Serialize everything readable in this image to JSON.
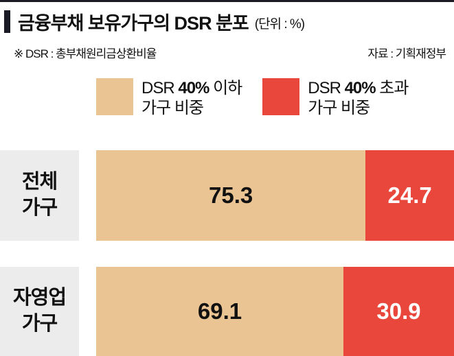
{
  "header": {
    "title": "금융부채 보유가구의 DSR 분포",
    "unit": "(단위 : %)",
    "note": "※ DSR : 총부채원리금상환비율",
    "source": "자료 : 기획재정부"
  },
  "legend": [
    {
      "prefix": "DSR",
      "bold": "40%",
      "suffix": "이하",
      "line2": "가구 비중"
    },
    {
      "prefix": "DSR",
      "bold": "40%",
      "suffix": "초과",
      "line2": "가구 비중"
    }
  ],
  "rows": [
    {
      "line1": "전체",
      "line2": "가구"
    },
    {
      "line1": "자영업",
      "line2": "가구"
    }
  ],
  "colors": {
    "under-color": "#ebc493",
    "over-color": "#e9463c",
    "label-bg": "#ececec",
    "accent-dark": "#1b1b26"
  },
  "chart_data": {
    "type": "bar",
    "orientation": "horizontal",
    "stacked": true,
    "title": "금융부채 보유가구의 DSR 분포",
    "unit": "%",
    "source": "기획재정부",
    "note": "DSR : 총부채원리금상환비율",
    "categories": [
      "전체 가구",
      "자영업 가구"
    ],
    "series": [
      {
        "name": "DSR 40% 이하 가구 비중",
        "values": [
          75.3,
          69.1
        ],
        "color": "#ebc493"
      },
      {
        "name": "DSR 40% 초과 가구 비중",
        "values": [
          24.7,
          30.9
        ],
        "color": "#e9463c"
      }
    ],
    "xlim": [
      0,
      100
    ],
    "legend_position": "top",
    "grid": false
  }
}
